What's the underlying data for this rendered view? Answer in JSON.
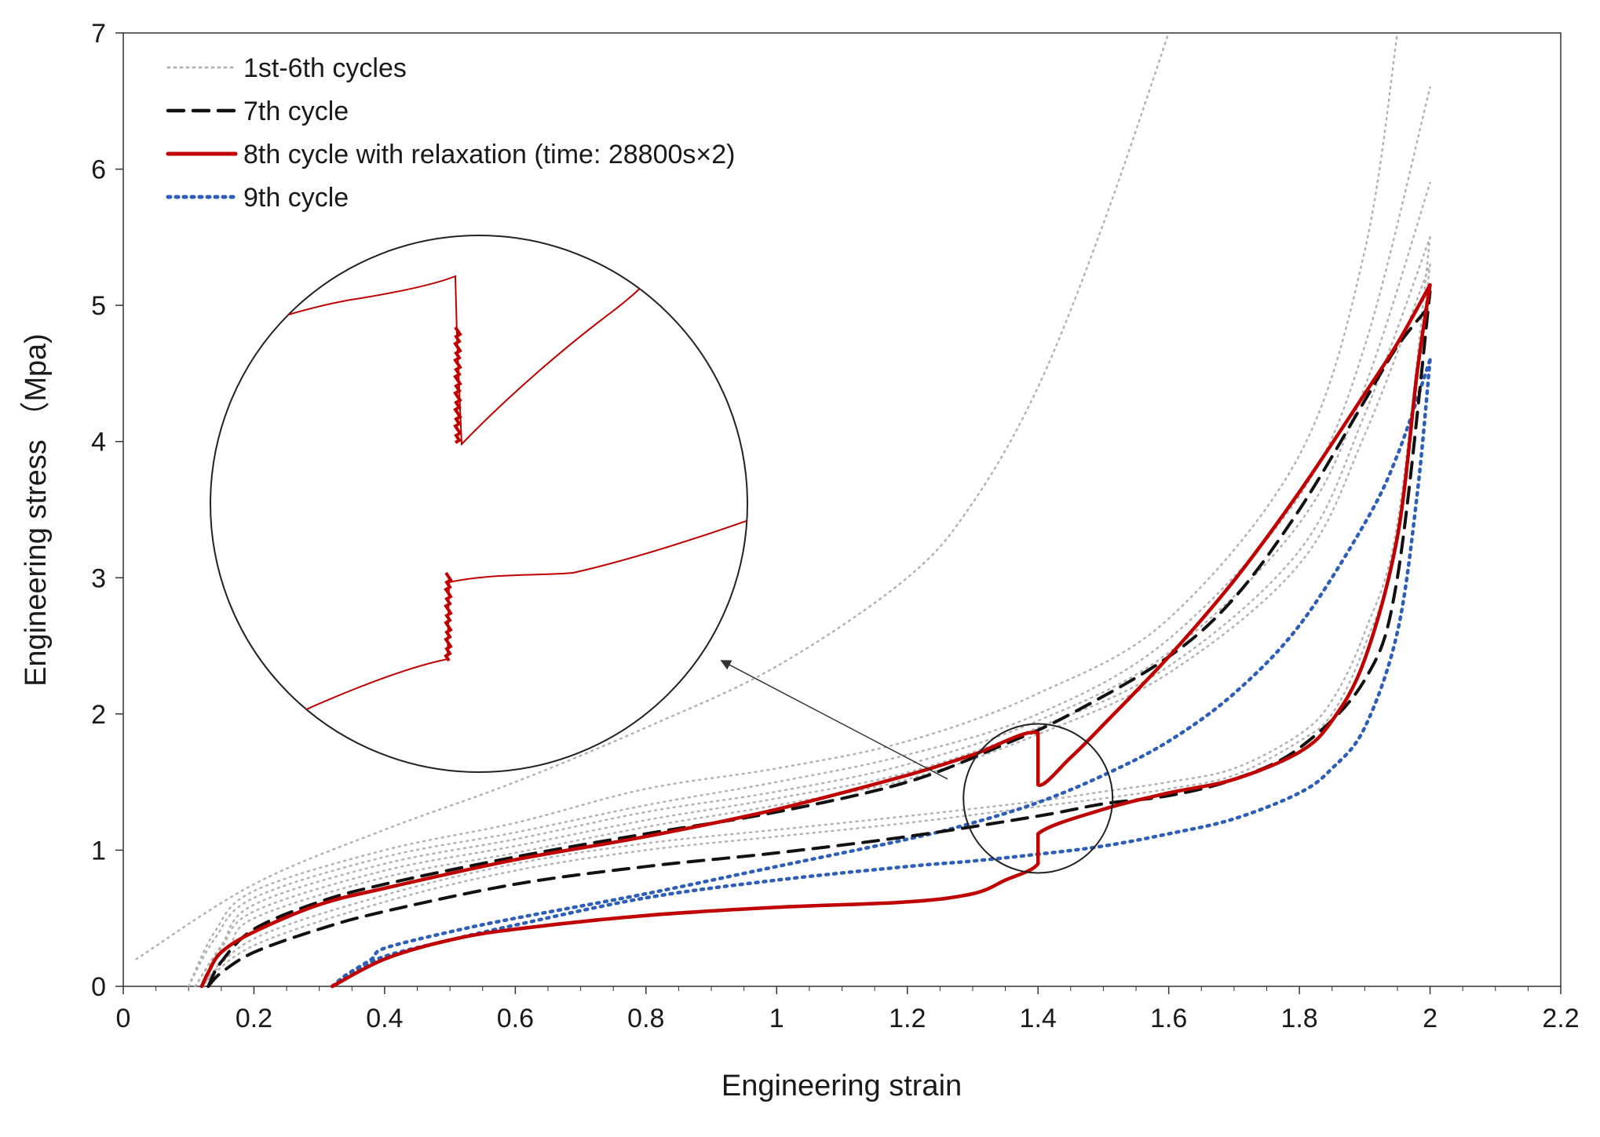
{
  "chart_data": {
    "type": "line",
    "title": "",
    "xlabel": "Engineering strain",
    "ylabel": "Engineering stress （Mpa)",
    "xlim": [
      0,
      2.2
    ],
    "ylim": [
      0,
      7
    ],
    "xticks": [
      0,
      0.2,
      0.4,
      0.6,
      0.8,
      1,
      1.2,
      1.4,
      1.6,
      1.8,
      2,
      2.2
    ],
    "xtick_labels": [
      "0",
      "0.2",
      "0.4",
      "0.6",
      "0.8",
      "1",
      "1.2",
      "1.4",
      "1.6",
      "1.8",
      "2",
      "2.2"
    ],
    "yticks": [
      0,
      1,
      2,
      3,
      4,
      5,
      6,
      7
    ],
    "ytick_labels": [
      "0",
      "1",
      "2",
      "3",
      "4",
      "5",
      "6",
      "7"
    ],
    "grid": false,
    "legend_position": "top-left",
    "colors": {
      "cycles_1_6": "#b3b3b3",
      "cycle_7": "#111111",
      "cycle_8": "#c00000",
      "cycle_9": "#2e5fb8",
      "axis": "#333333"
    },
    "series": [
      {
        "name": "1st-6th cycles",
        "style": "dotted",
        "curves": [
          {
            "x": [
              0.02,
              0.2,
              0.4,
              0.6,
              0.8,
              1.0,
              1.2,
              1.3,
              1.4,
              1.5,
              1.6
            ],
            "y": [
              0.2,
              0.75,
              1.15,
              1.5,
              1.9,
              2.35,
              3.0,
              3.55,
              4.4,
              5.6,
              7.0
            ]
          },
          {
            "x": [
              0.1,
              0.14,
              0.2,
              0.4,
              0.6,
              0.8,
              1.0,
              1.2,
              1.4,
              1.6,
              1.8,
              1.9,
              1.95
            ],
            "y": [
              0.0,
              0.4,
              0.7,
              1.0,
              1.2,
              1.45,
              1.6,
              1.8,
              2.15,
              2.7,
              3.9,
              5.4,
              7.0
            ]
          },
          {
            "x": [
              0.1,
              0.14,
              0.2,
              0.4,
              0.6,
              0.8,
              1.0,
              1.2,
              1.4,
              1.6,
              1.8,
              1.9,
              2.0
            ],
            "y": [
              0.0,
              0.35,
              0.65,
              0.95,
              1.13,
              1.33,
              1.5,
              1.7,
              2.0,
              2.55,
              3.6,
              4.7,
              6.6
            ]
          },
          {
            "x": [
              0.11,
              0.15,
              0.2,
              0.4,
              0.6,
              0.8,
              1.0,
              1.2,
              1.4,
              1.6,
              1.8,
              1.9,
              2.0
            ],
            "y": [
              0.0,
              0.3,
              0.6,
              0.9,
              1.08,
              1.28,
              1.43,
              1.63,
              1.95,
              2.45,
              3.4,
              4.4,
              5.9
            ]
          },
          {
            "x": [
              0.11,
              0.15,
              0.2,
              0.4,
              0.6,
              0.8,
              1.0,
              1.2,
              1.4,
              1.6,
              1.8,
              1.9,
              2.0
            ],
            "y": [
              0.0,
              0.28,
              0.55,
              0.85,
              1.03,
              1.22,
              1.38,
              1.57,
              1.9,
              2.35,
              3.2,
              4.2,
              5.5
            ]
          },
          {
            "x": [
              0.12,
              0.16,
              0.2,
              0.4,
              0.6,
              0.8,
              1.0,
              1.2,
              1.4,
              1.6,
              1.8,
              1.9,
              2.0
            ],
            "y": [
              0.0,
              0.25,
              0.5,
              0.8,
              0.98,
              1.17,
              1.33,
              1.52,
              1.85,
              2.3,
              3.1,
              4.05,
              5.3
            ]
          },
          {
            "x": [
              2.0,
              1.95,
              1.9,
              1.85,
              1.8,
              1.7,
              1.6,
              1.5,
              1.4,
              1.2,
              1.0,
              0.8,
              0.6,
              0.4,
              0.2,
              0.12
            ],
            "y": [
              5.3,
              3.3,
              2.5,
              2.0,
              1.8,
              1.55,
              1.45,
              1.38,
              1.32,
              1.2,
              1.1,
              1.0,
              0.85,
              0.62,
              0.3,
              0.0
            ]
          },
          {
            "x": [
              2.0,
              1.95,
              1.9,
              1.85,
              1.8,
              1.7,
              1.6,
              1.5,
              1.4,
              1.2,
              1.0,
              0.8,
              0.6,
              0.4,
              0.2,
              0.12
            ],
            "y": [
              5.5,
              3.4,
              2.6,
              2.1,
              1.85,
              1.6,
              1.5,
              1.43,
              1.36,
              1.25,
              1.15,
              1.05,
              0.9,
              0.67,
              0.35,
              0.0
            ]
          }
        ]
      },
      {
        "name": "7th cycle",
        "style": "dashed",
        "curves": [
          {
            "x": [
              0.13,
              0.15,
              0.2,
              0.3,
              0.4,
              0.6,
              0.8,
              1.0,
              1.2,
              1.4,
              1.5,
              1.6,
              1.7,
              1.8,
              1.9,
              1.95,
              2.0
            ],
            "y": [
              0.0,
              0.1,
              0.25,
              0.42,
              0.55,
              0.75,
              0.88,
              0.98,
              1.1,
              1.25,
              1.34,
              1.4,
              1.52,
              1.75,
              2.25,
              3.0,
              5.1
            ]
          },
          {
            "x": [
              0.13,
              0.15,
              0.2,
              0.3,
              0.4,
              0.6,
              0.8,
              1.0,
              1.2,
              1.35,
              1.45,
              1.6,
              1.7,
              1.8,
              1.9,
              1.95,
              2.0
            ],
            "y": [
              0.0,
              0.18,
              0.42,
              0.62,
              0.75,
              0.95,
              1.12,
              1.28,
              1.5,
              1.78,
              2.0,
              2.42,
              2.85,
              3.5,
              4.3,
              4.7,
              5.0
            ]
          }
        ]
      },
      {
        "name": "8th cycle with relaxation (time: 28800s×2)",
        "style": "solid",
        "curves": [
          {
            "x": [
              0.12,
              0.13,
              0.15,
              0.2,
              0.3,
              0.4,
              0.6,
              0.8,
              1.0,
              1.2,
              1.3,
              1.4,
              1.4,
              1.45,
              1.5,
              1.6,
              1.7,
              1.8,
              1.9,
              1.95,
              2.0
            ],
            "y": [
              0.0,
              0.1,
              0.25,
              0.4,
              0.6,
              0.72,
              0.93,
              1.1,
              1.3,
              1.55,
              1.7,
              1.86,
              1.48,
              1.68,
              1.92,
              2.42,
              2.98,
              3.63,
              4.35,
              4.72,
              5.15
            ]
          },
          {
            "x": [
              2.0,
              1.98,
              1.95,
              1.9,
              1.85,
              1.8,
              1.7,
              1.6,
              1.5,
              1.4,
              1.4,
              1.35,
              1.3,
              1.2,
              1.0,
              0.8,
              0.6,
              0.5,
              0.4,
              0.32
            ],
            "y": [
              5.15,
              4.5,
              3.3,
              2.4,
              1.95,
              1.72,
              1.52,
              1.42,
              1.3,
              1.12,
              0.9,
              0.78,
              0.68,
              0.62,
              0.58,
              0.52,
              0.42,
              0.34,
              0.2,
              0.0
            ]
          }
        ]
      },
      {
        "name": "9th cycle",
        "style": "dotted",
        "curves": [
          {
            "x": [
              0.32,
              0.34,
              0.38,
              0.4,
              0.5,
              0.6,
              0.8,
              1.0,
              1.2,
              1.3,
              1.4,
              1.5,
              1.6,
              1.7,
              1.8,
              1.9,
              1.95,
              2.0
            ],
            "y": [
              0.0,
              0.08,
              0.2,
              0.28,
              0.4,
              0.5,
              0.68,
              0.88,
              1.08,
              1.2,
              1.35,
              1.55,
              1.8,
              2.15,
              2.65,
              3.4,
              3.9,
              4.6
            ]
          },
          {
            "x": [
              2.0,
              1.98,
              1.95,
              1.9,
              1.85,
              1.8,
              1.7,
              1.6,
              1.5,
              1.4,
              1.3,
              1.2,
              1.0,
              0.8,
              0.6,
              0.5,
              0.4,
              0.35,
              0.32
            ],
            "y": [
              4.6,
              3.6,
              2.6,
              1.9,
              1.6,
              1.42,
              1.23,
              1.12,
              1.03,
              0.97,
              0.92,
              0.88,
              0.78,
              0.65,
              0.45,
              0.34,
              0.22,
              0.1,
              0.0
            ]
          }
        ]
      }
    ],
    "annotations": [
      {
        "type": "zoom-inset",
        "target": {
          "x": 1.4,
          "y": 1.4
        },
        "description": "magnified relaxation drops of the 8th cycle"
      }
    ]
  }
}
